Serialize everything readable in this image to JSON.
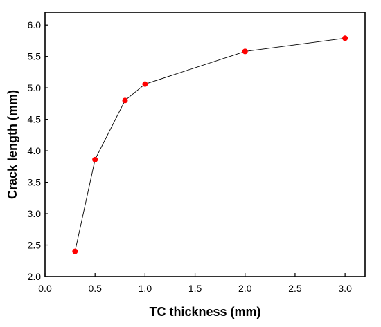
{
  "chart_data": {
    "type": "scatter",
    "xlabel": "TC thickness (mm)",
    "ylabel": "Crack length (mm)",
    "xlim": [
      0.0,
      3.2
    ],
    "ylim": [
      2.0,
      6.2
    ],
    "xticks": [
      "0.0",
      "0.5",
      "1.0",
      "1.5",
      "2.0",
      "2.5",
      "3.0"
    ],
    "yticks": [
      "2.0",
      "2.5",
      "3.0",
      "3.5",
      "4.0",
      "4.5",
      "5.0",
      "5.5",
      "6.0"
    ],
    "series": [
      {
        "x": [
          0.3,
          0.5,
          0.8,
          1.0,
          2.0,
          3.0
        ],
        "y": [
          2.4,
          3.86,
          4.8,
          5.06,
          5.58,
          5.79
        ]
      }
    ],
    "marker_color": "#ff0000",
    "line_color": "#000000",
    "grid": false,
    "legend": "none"
  }
}
